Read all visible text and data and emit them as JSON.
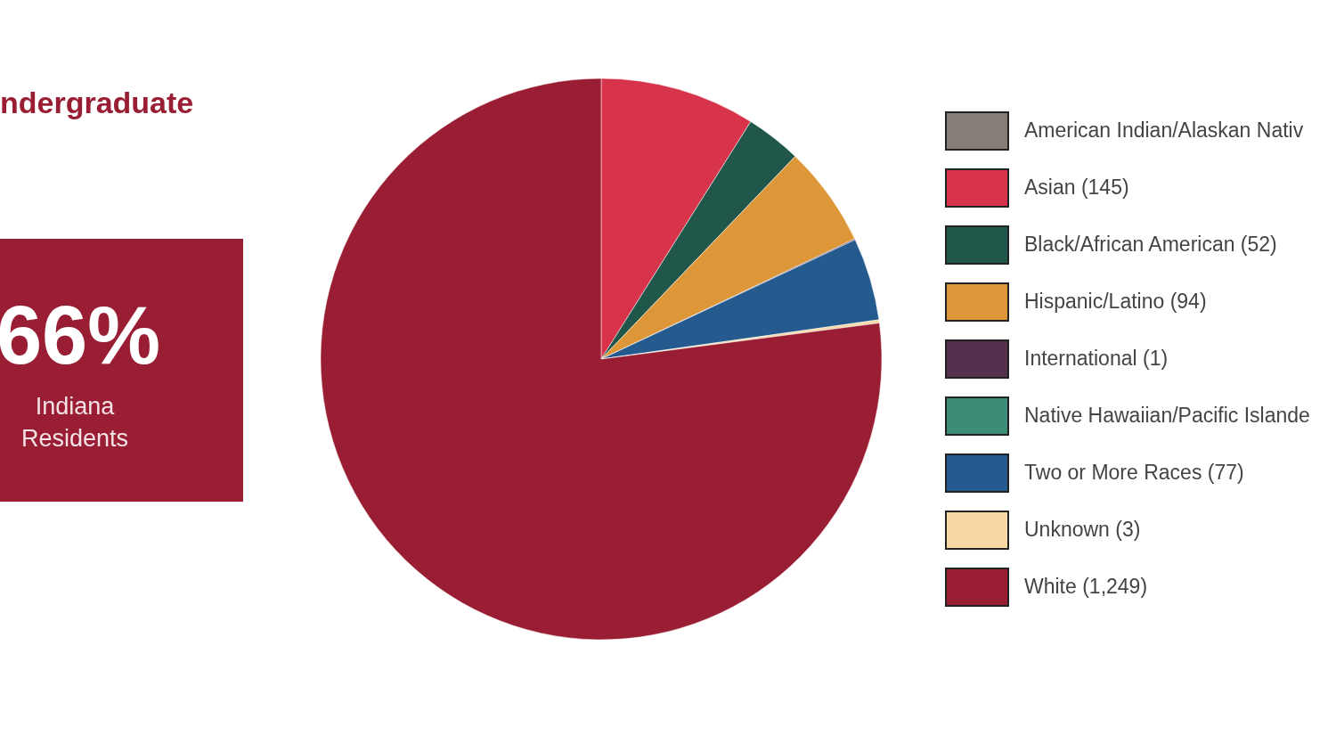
{
  "chart_data": {
    "type": "pie",
    "title": "ndergraduate",
    "annotations": [
      "66%",
      "Indiana Residents"
    ],
    "categories": [
      "American Indian/Alaskan Nativ",
      "Asian (145)",
      "Black/African American (52)",
      "Hispanic/Latino (94)",
      "International (1)",
      "Native Hawaiian/Pacific Islande",
      "Two or More Races (77)",
      "Unknown (3)",
      "White (1,249)"
    ],
    "values": [
      null,
      145,
      52,
      94,
      1,
      null,
      77,
      3,
      1249
    ],
    "colors": [
      "#857d78",
      "#d7334b",
      "#21574a",
      "#dd9638",
      "#55314d",
      "#3d8c78",
      "#255a8f",
      "#f8d9a6",
      "#9a1e33"
    ],
    "legend": "right"
  }
}
